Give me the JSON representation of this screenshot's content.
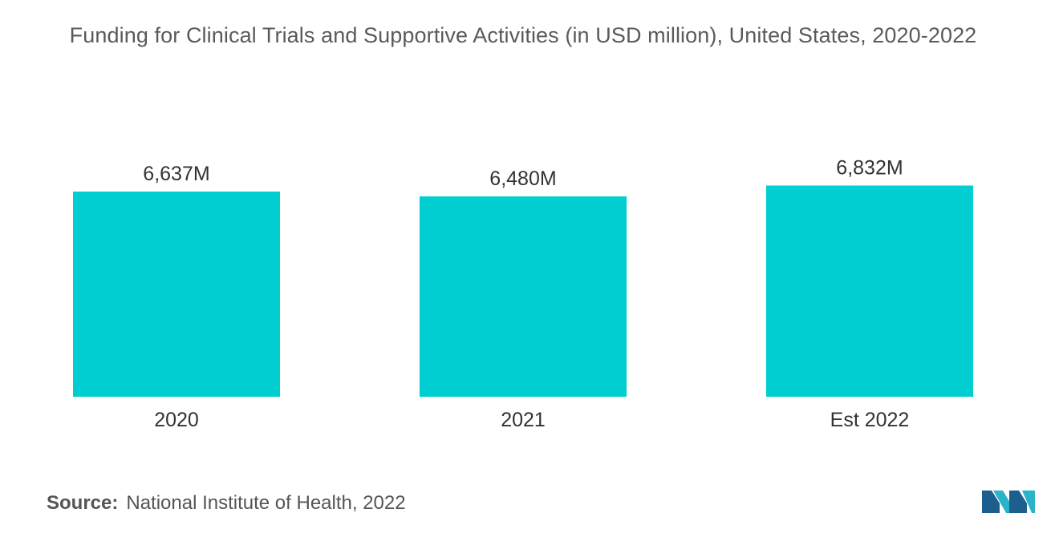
{
  "chart_data": {
    "type": "bar",
    "title": "Funding for Clinical Trials and Supportive Activities (in USD million), United States, 2020-2022",
    "categories": [
      "2020",
      "2021",
      "Est 2022"
    ],
    "values": [
      6637,
      6480,
      6832
    ],
    "data_labels": [
      "6,637M",
      "6,480M",
      "6,832M"
    ],
    "xlabel": "",
    "ylabel": "",
    "ylim": [
      0,
      7000
    ],
    "grid": false,
    "legend": "none",
    "bar_color": "#00ced1"
  },
  "source": {
    "label": "Source:",
    "text": "National Institute of Health, 2022"
  },
  "logo": {
    "icon": "mordor-intelligence-logo-icon",
    "colors": [
      "#1c5f8f",
      "#2ab3c9"
    ]
  }
}
